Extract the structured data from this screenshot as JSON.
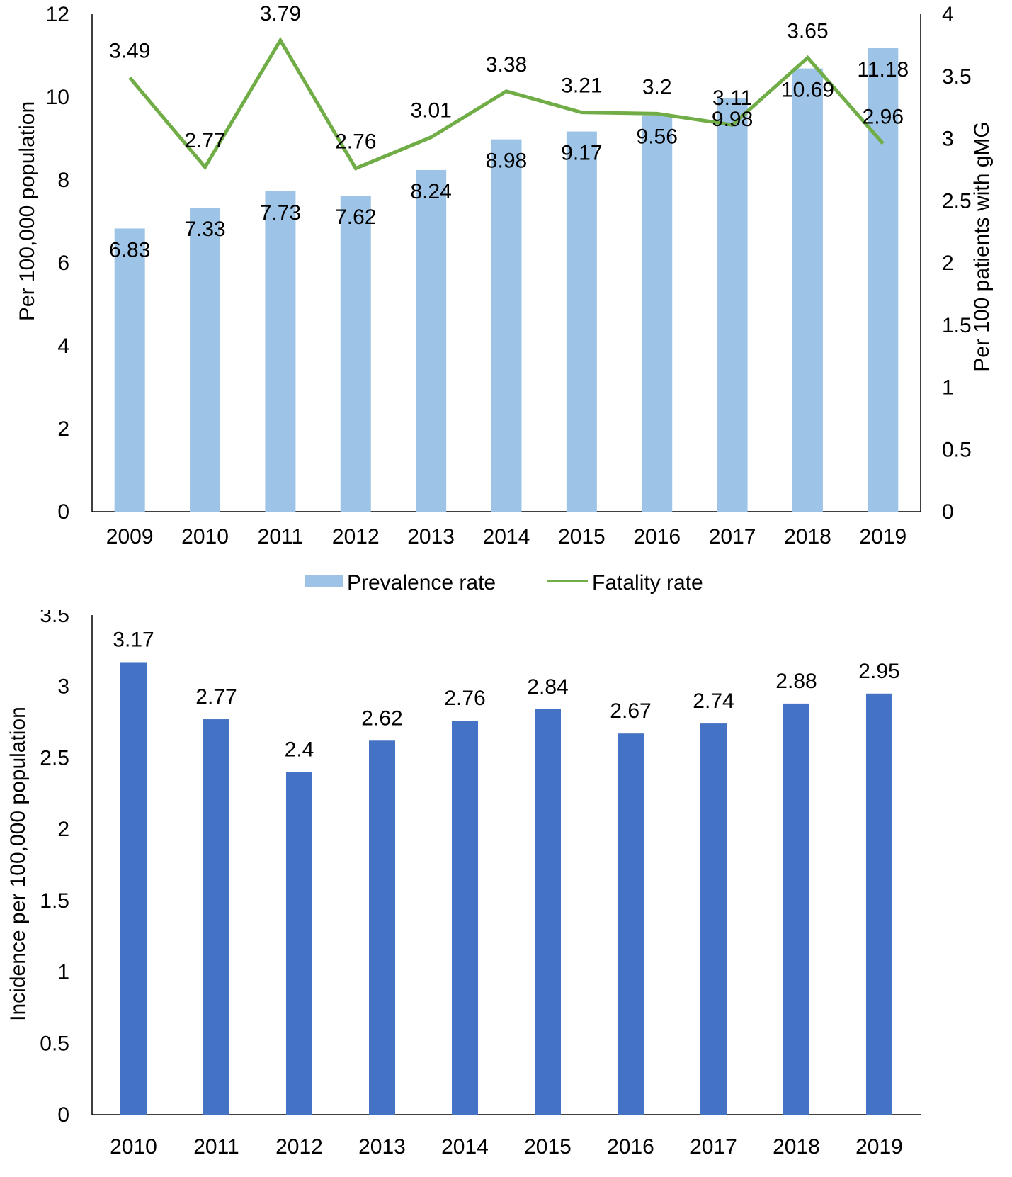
{
  "chart_data": [
    {
      "type": "bar+line",
      "categories": [
        "2009",
        "2010",
        "2011",
        "2012",
        "2013",
        "2014",
        "2015",
        "2016",
        "2017",
        "2018",
        "2019"
      ],
      "series": [
        {
          "name": "Prevalence rate",
          "type": "bar",
          "axis": "left",
          "color": "#9dc3e6",
          "values": [
            6.83,
            7.33,
            7.73,
            7.62,
            8.24,
            8.98,
            9.17,
            9.56,
            9.98,
            10.69,
            11.18
          ],
          "labels": [
            "6.83",
            "7.33",
            "7.73",
            "7.62",
            "8.24",
            "8.98",
            "9.17",
            "9.56",
            "9.98",
            "10.69",
            "11.18"
          ]
        },
        {
          "name": "Fatality rate",
          "type": "line",
          "axis": "right",
          "color": "#70ad47",
          "values": [
            3.49,
            2.77,
            3.79,
            2.76,
            3.01,
            3.38,
            3.21,
            3.2,
            3.11,
            3.65,
            2.96
          ],
          "labels": [
            "3.49",
            "2.77",
            "3.79",
            "2.76",
            "3.01",
            "3.38",
            "3.21",
            "3.2",
            "3.11",
            "3.65",
            "2.96"
          ]
        }
      ],
      "ylabel": "Per 100,000 population",
      "y2label": "Per 100 patients with gMG",
      "ylim": [
        0,
        12
      ],
      "y2lim": [
        0,
        4
      ],
      "yticks": [
        "0",
        "2",
        "4",
        "6",
        "8",
        "10",
        "12"
      ],
      "y2ticks": [
        "0",
        "0.5",
        "1",
        "1.5",
        "2",
        "2.5",
        "3",
        "3.5",
        "4"
      ],
      "legend": {
        "position": "bottom",
        "items": [
          "Prevalence rate",
          "Fatality rate"
        ]
      },
      "grid": false
    },
    {
      "type": "bar",
      "categories": [
        "2010",
        "2011",
        "2012",
        "2013",
        "2014",
        "2015",
        "2016",
        "2017",
        "2018",
        "2019"
      ],
      "series": [
        {
          "name": "Incidence",
          "color": "#4472c4",
          "values": [
            3.17,
            2.77,
            2.4,
            2.62,
            2.76,
            2.84,
            2.67,
            2.74,
            2.88,
            2.95
          ],
          "labels": [
            "3.17",
            "2.77",
            "2.4",
            "2.62",
            "2.76",
            "2.84",
            "2.67",
            "2.74",
            "2.88",
            "2.95"
          ]
        }
      ],
      "ylabel": "Incidence per 100,000 population",
      "ylim": [
        0,
        3.5
      ],
      "yticks": [
        "0",
        "0.5",
        "1",
        "1.5",
        "2",
        "2.5",
        "3",
        "3.5"
      ],
      "grid": false
    }
  ]
}
